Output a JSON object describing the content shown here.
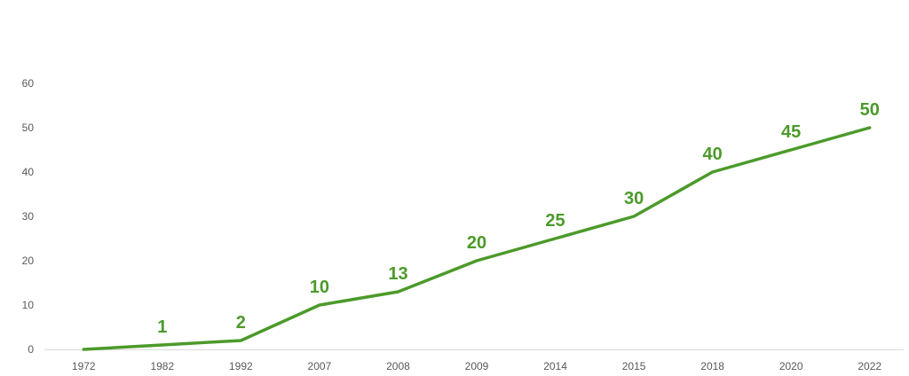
{
  "chart_data": {
    "type": "line",
    "title": "",
    "xlabel": "",
    "ylabel": "",
    "categories": [
      "1972",
      "1982",
      "1992",
      "2007",
      "2008",
      "2009",
      "2014",
      "2015",
      "2018",
      "2020",
      "2022"
    ],
    "series": [
      {
        "values": [
          0,
          1,
          2,
          10,
          13,
          20,
          25,
          30,
          40,
          45,
          50
        ],
        "data_labels": [
          "",
          "1",
          "2",
          "10",
          "13",
          "20",
          "25",
          "30",
          "40",
          "45",
          "50"
        ]
      }
    ],
    "ylim": [
      0,
      60
    ],
    "yticks": [
      "0",
      "10",
      "20",
      "30",
      "40",
      "50",
      "60"
    ],
    "grid": false,
    "legend": "none",
    "colors": {
      "line": "#4c9a2a",
      "labels": "#4c9a2a",
      "axis": "#d9d9d9",
      "ticks": "#595959"
    }
  }
}
